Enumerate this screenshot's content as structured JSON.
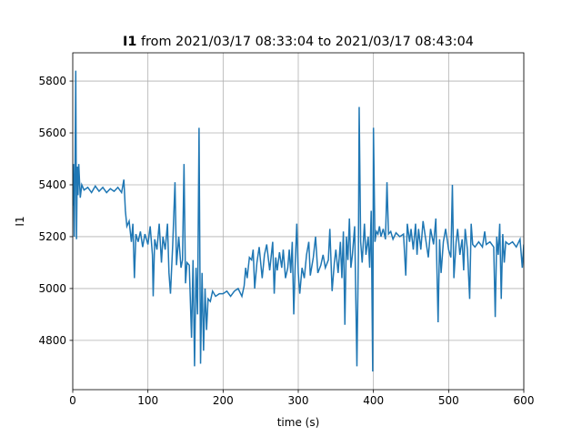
{
  "chart_data": {
    "type": "line",
    "title": {
      "bold": "I1",
      "rest": "from 2021/03/17 08:33:04 to 2021/03/17 08:43:04"
    },
    "xlabel": "time (s)",
    "ylabel": "I1",
    "x": [
      0,
      1,
      2,
      3,
      4,
      5,
      6,
      7,
      8,
      10,
      12,
      15,
      20,
      25,
      30,
      35,
      40,
      45,
      50,
      55,
      60,
      65,
      68,
      70,
      72,
      75,
      78,
      80,
      82,
      84,
      87,
      90,
      93,
      96,
      100,
      103,
      106,
      107,
      109,
      112,
      115,
      118,
      120,
      123,
      126,
      128,
      130,
      133,
      136,
      138,
      141,
      144,
      146,
      148,
      150,
      152,
      155,
      158,
      160,
      162,
      164,
      166,
      168,
      170,
      172,
      174,
      176,
      178,
      180,
      183,
      186,
      190,
      195,
      200,
      205,
      210,
      215,
      220,
      225,
      228,
      230,
      232,
      235,
      238,
      240,
      242,
      245,
      248,
      252,
      255,
      258,
      262,
      266,
      268,
      270,
      272,
      275,
      278,
      280,
      283,
      286,
      288,
      290,
      292,
      294,
      296,
      298,
      300,
      302,
      305,
      308,
      311,
      314,
      316,
      320,
      323,
      326,
      330,
      333,
      336,
      340,
      342,
      345,
      348,
      350,
      353,
      356,
      358,
      360,
      362,
      364,
      366,
      368,
      370,
      372,
      375,
      378,
      380,
      381,
      383,
      385,
      388,
      390,
      393,
      395,
      397,
      399,
      400,
      402,
      404,
      406,
      408,
      410,
      413,
      416,
      418,
      420,
      423,
      426,
      430,
      435,
      440,
      443,
      445,
      448,
      450,
      453,
      456,
      458,
      460,
      463,
      466,
      470,
      473,
      476,
      480,
      483,
      486,
      488,
      490,
      493,
      496,
      500,
      503,
      505,
      507,
      510,
      512,
      515,
      518,
      520,
      522,
      525,
      528,
      530,
      532,
      535,
      540,
      545,
      548,
      550,
      555,
      560,
      562,
      564,
      566,
      568,
      570,
      572,
      574,
      576,
      580,
      585,
      590,
      595,
      598,
      600
    ],
    "series": [
      {
        "name": "I1",
        "color": "#1f77b4",
        "values": [
          5320,
          5480,
          5200,
          5450,
          5840,
          5190,
          5470,
          5360,
          5480,
          5350,
          5400,
          5380,
          5390,
          5370,
          5395,
          5375,
          5390,
          5370,
          5385,
          5375,
          5390,
          5370,
          5420,
          5300,
          5240,
          5260,
          5180,
          5250,
          5040,
          5210,
          5180,
          5220,
          5160,
          5210,
          5170,
          5240,
          5130,
          4970,
          5190,
          5150,
          5250,
          5100,
          5200,
          5150,
          5250,
          5060,
          4980,
          5170,
          5410,
          5090,
          5200,
          5080,
          5110,
          5480,
          5020,
          5100,
          5090,
          4810,
          5110,
          4700,
          5080,
          4900,
          5620,
          4710,
          5060,
          4760,
          5000,
          4840,
          4960,
          4950,
          4990,
          4970,
          4980,
          4980,
          4990,
          4970,
          4990,
          5000,
          4970,
          5010,
          5080,
          5040,
          5120,
          5110,
          5150,
          5000,
          5100,
          5160,
          5040,
          5130,
          5170,
          5070,
          5180,
          4980,
          5120,
          5070,
          5140,
          5080,
          5150,
          5040,
          5080,
          5150,
          5060,
          5180,
          4900,
          5100,
          5250,
          5060,
          4980,
          5080,
          5040,
          5130,
          5180,
          5050,
          5120,
          5200,
          5060,
          5090,
          5130,
          5080,
          5110,
          5230,
          4990,
          5100,
          5150,
          5060,
          5180,
          5040,
          5220,
          4860,
          5200,
          5110,
          5270,
          5080,
          5130,
          5240,
          4700,
          5140,
          5700,
          5180,
          5100,
          5250,
          5130,
          5200,
          5080,
          5300,
          4680,
          5620,
          5180,
          5220,
          5210,
          5240,
          5200,
          5230,
          5190,
          5410,
          5210,
          5220,
          5190,
          5215,
          5200,
          5210,
          5050,
          5250,
          5180,
          5230,
          5150,
          5250,
          5130,
          5230,
          5150,
          5260,
          5180,
          5120,
          5230,
          5170,
          5270,
          4870,
          5190,
          5060,
          5180,
          5230,
          5150,
          5120,
          5400,
          5040,
          5180,
          5230,
          5130,
          5190,
          5070,
          5230,
          5150,
          4960,
          5250,
          5170,
          5160,
          5180,
          5160,
          5220,
          5170,
          5180,
          5160,
          4890,
          5200,
          5130,
          5250,
          4960,
          5210,
          5100,
          5180,
          5170,
          5180,
          5160,
          5190,
          5080,
          5170
        ]
      }
    ],
    "xlim": [
      0,
      600
    ],
    "xticks": [
      0,
      100,
      200,
      300,
      400,
      500,
      600
    ],
    "ylim": [
      4610,
      5909
    ],
    "yticks": [
      4800,
      5000,
      5200,
      5400,
      5600,
      5800
    ],
    "grid": true
  }
}
